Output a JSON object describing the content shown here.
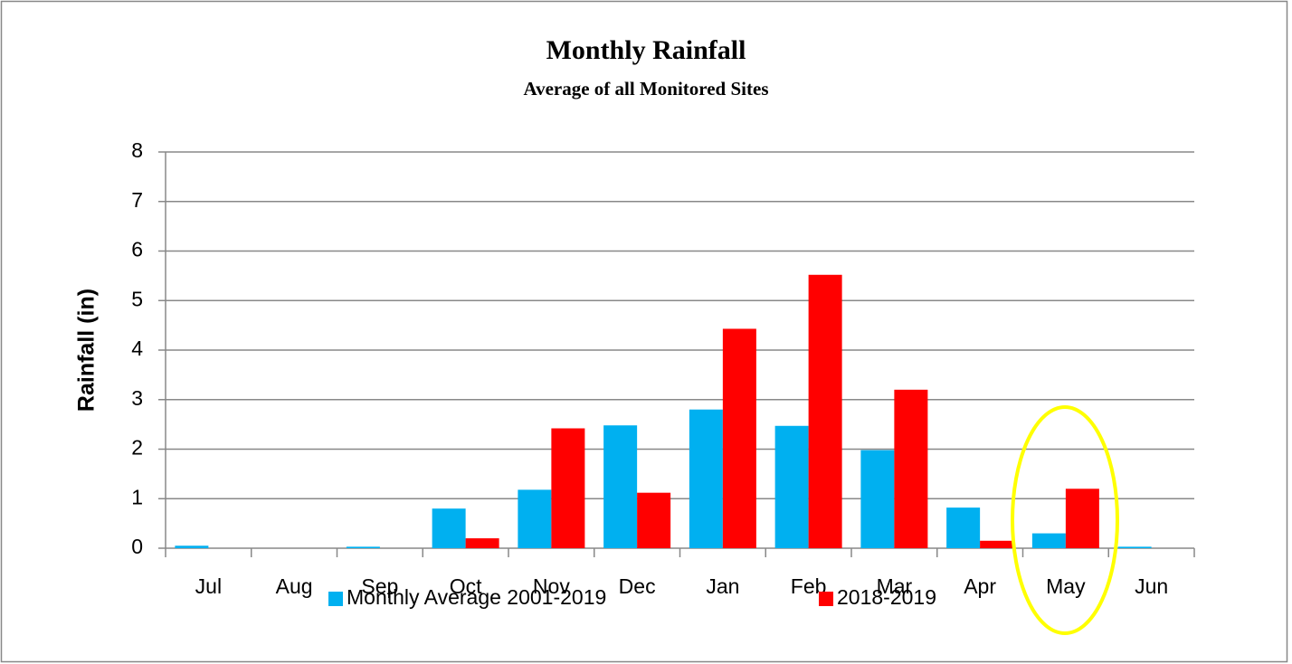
{
  "chart_data": {
    "type": "bar",
    "title": "Monthly Rainfall",
    "subtitle": "Average of all Monitored Sites",
    "y_label": "Rainfall (in)",
    "categories": [
      "Jul",
      "Aug",
      "Sep",
      "Oct",
      "Nov",
      "Dec",
      "Jan",
      "Feb",
      "Mar",
      "Apr",
      "May",
      "Jun"
    ],
    "series": [
      {
        "name": "Monthly Average 2001-2019",
        "color": "#00b0f0",
        "values": [
          0.05,
          0,
          0.03,
          0.8,
          1.18,
          2.48,
          2.8,
          2.47,
          1.98,
          0.82,
          0.3,
          0.03
        ]
      },
      {
        "name": "2018-2019",
        "color": "#ff0000",
        "values": [
          0,
          0,
          0,
          0.2,
          2.42,
          1.12,
          4.43,
          5.52,
          3.2,
          0.15,
          1.2,
          0
        ]
      }
    ],
    "ylim": [
      0,
      8
    ],
    "yticks": [
      0,
      1,
      2,
      3,
      4,
      5,
      6,
      7,
      8
    ],
    "grid": true,
    "legend": "bottom"
  }
}
